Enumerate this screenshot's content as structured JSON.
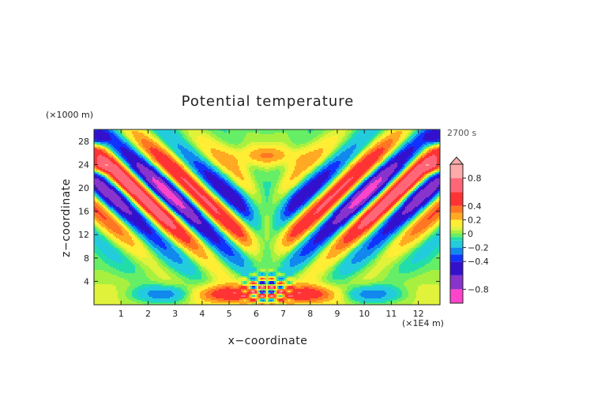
{
  "chart_data": {
    "type": "heatmap",
    "title": "Potential temperature",
    "xlabel": "x−coordinate",
    "ylabel": "z−coordinate",
    "x_unit": "(×1E4 m)",
    "y_unit": "(×1000 m)",
    "time_label": "2700 s",
    "xlim": [
      0,
      12.8
    ],
    "ylim": [
      0,
      30
    ],
    "x_ticks": [
      1,
      2,
      3,
      4,
      5,
      6,
      7,
      8,
      9,
      10,
      11,
      12
    ],
    "y_ticks": [
      4,
      8,
      12,
      16,
      20,
      24,
      28
    ],
    "colorbar": {
      "range": [
        -1.0,
        1.0
      ],
      "tick_values": [
        0.8,
        0.4,
        0.2,
        0,
        -0.2,
        -0.4,
        -0.8
      ],
      "tick_labels": [
        "0.8",
        "0.4",
        "0.2",
        "0",
        "−0.2",
        "−0.4",
        "−0.8"
      ],
      "levels": [
        -1.0,
        -0.8,
        -0.6,
        -0.4,
        -0.3,
        -0.2,
        -0.1,
        -0.05,
        0.0,
        0.05,
        0.1,
        0.2,
        0.3,
        0.4,
        0.6,
        0.8,
        1.0
      ],
      "colors": [
        "#ff44cc",
        "#8833cc",
        "#3311cc",
        "#1133ff",
        "#1188ee",
        "#22ccdd",
        "#22ddaa",
        "#66ee66",
        "#a8f040",
        "#e0f23a",
        "#ffee33",
        "#ffaa22",
        "#ff7722",
        "#ff3333",
        "#ff6677",
        "#ffaaaa"
      ]
    },
    "features": [
      {
        "name": "upper plume band left",
        "sign": "+",
        "x": 4.2,
        "z": 20
      },
      {
        "name": "upper plume band right",
        "sign": "+",
        "x": 8.6,
        "z": 20
      },
      {
        "name": "warm cell near surface left",
        "sign": "+",
        "x": 4.5,
        "z": 1.8
      },
      {
        "name": "warm cell near surface right",
        "sign": "+",
        "x": 8.6,
        "z": 1.8
      },
      {
        "name": "source region",
        "sign": "±",
        "x": 6.4,
        "z": 2.5
      },
      {
        "name": "upper central warm patch",
        "sign": "+",
        "x": 6.4,
        "z": 25
      }
    ]
  }
}
